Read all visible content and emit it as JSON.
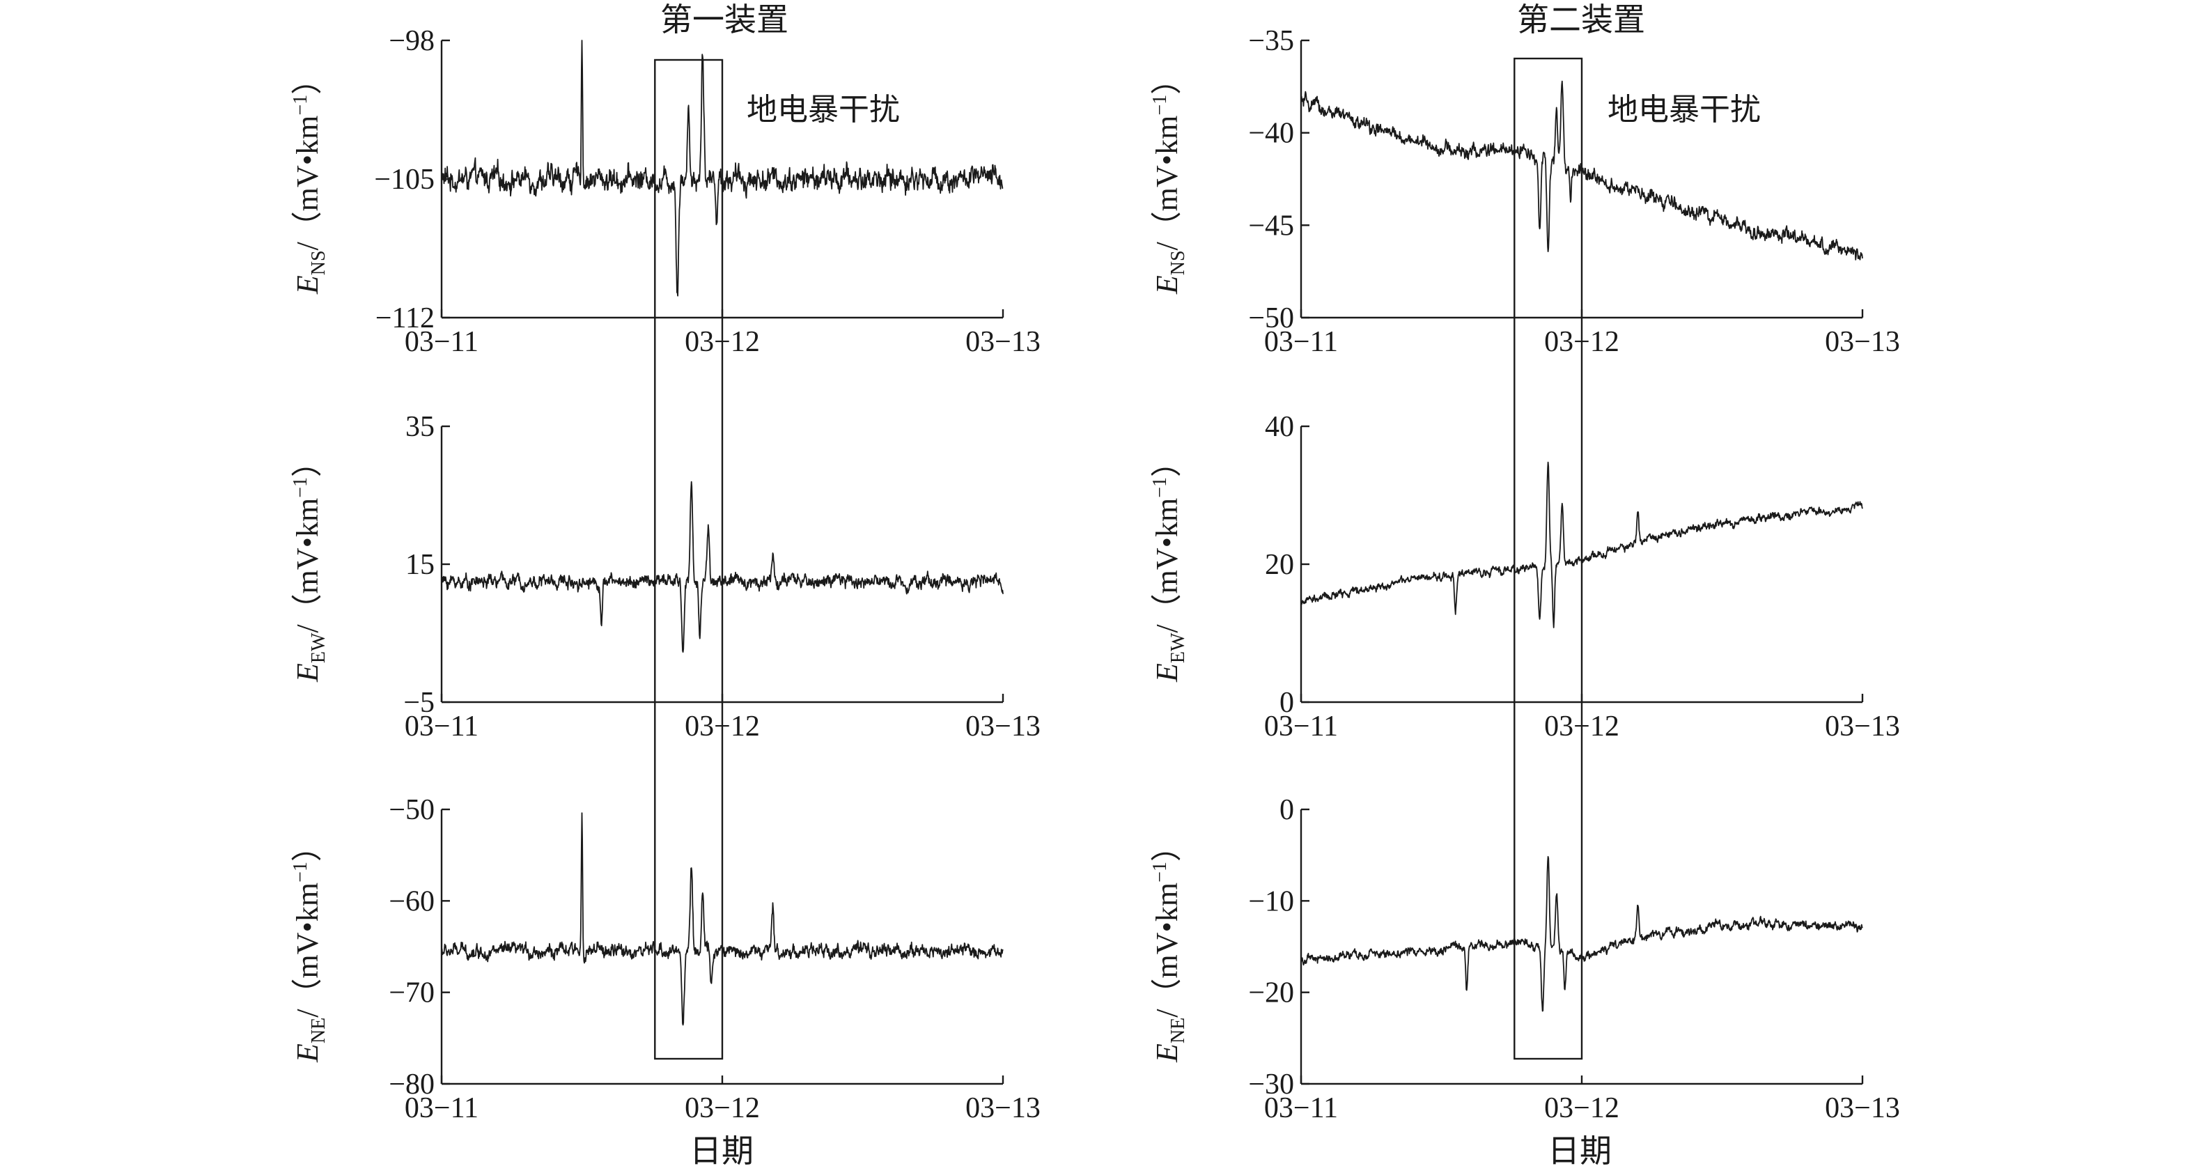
{
  "figure": {
    "column_titles": [
      "第一装置",
      "第二装置"
    ],
    "x_label": "日期",
    "annotation": "地电暴干扰",
    "y_label_unit": "/（mV•km",
    "y_label_unit_exp": "−1",
    "y_label_unit_close": "）",
    "y_label_base": "E",
    "x_tick_labels": [
      "03−11",
      "03−12",
      "03−13"
    ],
    "disturbance_window_days": [
      0.76,
      1.0
    ],
    "colors": {
      "line": "#1a1a1a",
      "axis": "#1a1a1a",
      "box": "#1a1a1a"
    }
  },
  "chart_data": [
    {
      "type": "line",
      "title": "第一装置",
      "component": "NS",
      "ylabel": "E_NS/(mV•km⁻¹)",
      "xlabel": "",
      "x_range_days": [
        0,
        2
      ],
      "yticks": [
        -98,
        -105,
        -112
      ],
      "ylim": [
        -112,
        -98
      ],
      "series": [
        {
          "baseline": -105.0,
          "noise": 0.55,
          "spikes": [
            [
              0.5,
              7.5,
              0.003
            ],
            [
              0.84,
              -5.5,
              0.006
            ],
            [
              0.88,
              4,
              0.005
            ],
            [
              0.93,
              6.8,
              0.006
            ],
            [
              0.98,
              -2,
              0.004
            ]
          ]
        }
      ]
    },
    {
      "type": "line",
      "title": "第一装置",
      "component": "EW",
      "ylabel": "E_EW/(mV•km⁻¹)",
      "xlabel": "",
      "x_range_days": [
        0,
        2
      ],
      "yticks": [
        35,
        15,
        -5
      ],
      "ylim": [
        -5,
        35
      ],
      "series": [
        {
          "baseline": 12.5,
          "noise": 0.9,
          "spikes": [
            [
              0.57,
              -6,
              0.005
            ],
            [
              0.86,
              -10,
              0.006
            ],
            [
              0.89,
              14,
              0.006
            ],
            [
              0.92,
              -8,
              0.005
            ],
            [
              0.95,
              8,
              0.006
            ],
            [
              1.18,
              4,
              0.006
            ]
          ]
        }
      ]
    },
    {
      "type": "line",
      "title": "第一装置",
      "component": "NE",
      "ylabel": "E_NE/(mV•km⁻¹)",
      "xlabel": "日期",
      "x_range_days": [
        0,
        2
      ],
      "yticks": [
        -50,
        -60,
        -70,
        -80
      ],
      "ylim": [
        -80,
        -50
      ],
      "series": [
        {
          "baseline": -65.5,
          "noise": 0.7,
          "spikes": [
            [
              0.5,
              15.5,
              0.003
            ],
            [
              0.86,
              -7.5,
              0.006
            ],
            [
              0.89,
              9,
              0.006
            ],
            [
              0.93,
              6.5,
              0.006
            ],
            [
              0.96,
              -4,
              0.005
            ],
            [
              1.18,
              4.5,
              0.005
            ]
          ]
        }
      ]
    },
    {
      "type": "line",
      "title": "第二装置",
      "component": "NS",
      "ylabel": "E_NS/(mV•km⁻¹)",
      "xlabel": "",
      "x_range_days": [
        0,
        2
      ],
      "yticks": [
        -35,
        -40,
        -45,
        -50
      ],
      "ylim": [
        -50,
        -35
      ],
      "series": [
        {
          "trend": [
            [
              0,
              -38.3
            ],
            [
              0.3,
              -40.0
            ],
            [
              0.55,
              -41.0
            ],
            [
              0.8,
              -41.0
            ],
            [
              1.0,
              -42.2
            ],
            [
              1.3,
              -43.8
            ],
            [
              1.6,
              -45.2
            ],
            [
              2.0,
              -46.6
            ]
          ],
          "noise": 0.35,
          "spikes": [
            [
              0.85,
              -3.5,
              0.006
            ],
            [
              0.88,
              -5.0,
              0.006
            ],
            [
              0.91,
              3.0,
              0.005
            ],
            [
              0.93,
              4.4,
              0.006
            ],
            [
              0.96,
              -2.0,
              0.004
            ]
          ]
        }
      ]
    },
    {
      "type": "line",
      "title": "第二装置",
      "component": "EW",
      "ylabel": "E_EW/(mV•km⁻¹)",
      "xlabel": "",
      "x_range_days": [
        0,
        2
      ],
      "yticks": [
        40,
        20,
        0
      ],
      "ylim": [
        0,
        40
      ],
      "series": [
        {
          "trend": [
            [
              0,
              14.5
            ],
            [
              0.4,
              17.8
            ],
            [
              0.8,
              19.5
            ],
            [
              1.0,
              20.5
            ],
            [
              1.3,
              24.5
            ],
            [
              1.6,
              26.5
            ],
            [
              2.0,
              28.5
            ]
          ],
          "noise": 0.55,
          "spikes": [
            [
              0.55,
              -5,
              0.005
            ],
            [
              0.85,
              -8,
              0.006
            ],
            [
              0.88,
              15,
              0.006
            ],
            [
              0.9,
              -9,
              0.005
            ],
            [
              0.93,
              9,
              0.006
            ],
            [
              1.2,
              4.5,
              0.005
            ]
          ]
        }
      ]
    },
    {
      "type": "line",
      "title": "第二装置",
      "component": "NE",
      "ylabel": "E_NE/(mV•km⁻¹)",
      "xlabel": "日期",
      "x_range_days": [
        0,
        2
      ],
      "yticks": [
        0,
        -10,
        -20,
        -30
      ],
      "ylim": [
        -30,
        0
      ],
      "series": [
        {
          "trend": [
            [
              0,
              -16.5
            ],
            [
              0.4,
              -15.5
            ],
            [
              0.8,
              -14.5
            ],
            [
              1.0,
              -16
            ],
            [
              1.3,
              -13.5
            ],
            [
              1.6,
              -12.5
            ],
            [
              2.0,
              -12.8
            ]
          ],
          "noise": 0.45,
          "spikes": [
            [
              0.59,
              -4.5,
              0.005
            ],
            [
              0.86,
              -7,
              0.006
            ],
            [
              0.88,
              10,
              0.006
            ],
            [
              0.91,
              6,
              0.006
            ],
            [
              0.94,
              -4,
              0.005
            ],
            [
              1.2,
              4,
              0.005
            ]
          ]
        }
      ]
    }
  ]
}
